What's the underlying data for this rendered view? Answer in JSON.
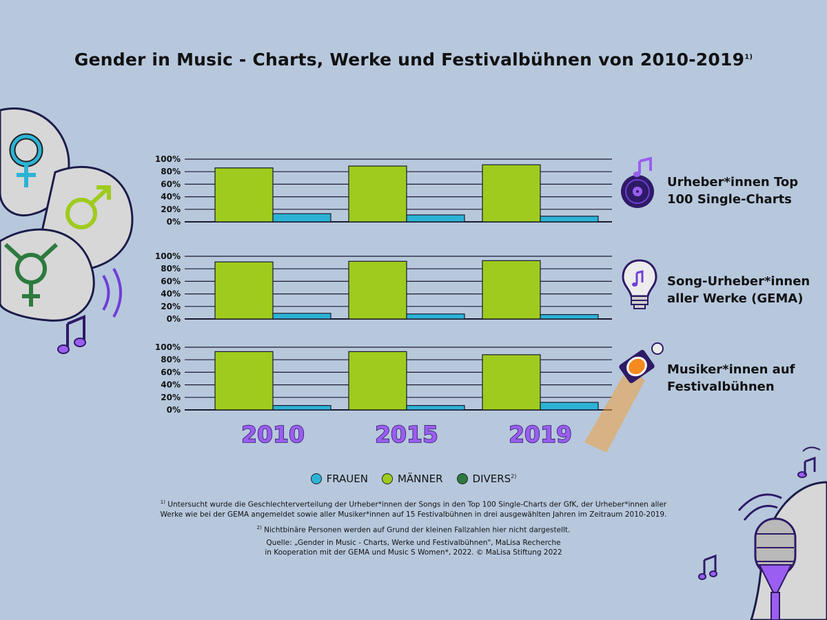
{
  "title": "Gender in Music - Charts, Werke und Festivalbühnen von 2010-2019",
  "title_footnote_marker": "1)",
  "colors": {
    "frauen": "#2bb3d6",
    "maenner": "#9fcb1e",
    "divers": "#2d7a3f",
    "accent": "#9a5ef0"
  },
  "icons": [
    "female-symbol-icon",
    "male-symbol-icon",
    "transgender-symbol-icon",
    "vinyl-record-icon",
    "lightbulb-icon",
    "spotlight-icon",
    "microphone-icon",
    "music-note-icon"
  ],
  "categories": [
    {
      "label_line1": "Urheber*innen Top",
      "label_line2": "100 Single-Charts"
    },
    {
      "label_line1": "Song-Urheber*innen",
      "label_line2": "aller Werke (GEMA)"
    },
    {
      "label_line1": "Musiker*innen auf",
      "label_line2": "Festivalbühnen"
    }
  ],
  "chart_data": [
    {
      "type": "bar",
      "categories": [
        "2010",
        "2015",
        "2019"
      ],
      "series": [
        {
          "name": "MÄNNER",
          "values": [
            86,
            89,
            91
          ]
        },
        {
          "name": "FRAUEN",
          "values": [
            13,
            11,
            9
          ]
        }
      ],
      "yticks": [
        "100%",
        "80%",
        "60%",
        "40%",
        "20%",
        "0%"
      ],
      "ylim": [
        0,
        100
      ]
    },
    {
      "type": "bar",
      "categories": [
        "2010",
        "2015",
        "2019"
      ],
      "series": [
        {
          "name": "MÄNNER",
          "values": [
            91,
            92,
            93
          ]
        },
        {
          "name": "FRAUEN",
          "values": [
            9,
            8,
            7
          ]
        }
      ],
      "yticks": [
        "100%",
        "80%",
        "60%",
        "40%",
        "20%",
        "0%"
      ],
      "ylim": [
        0,
        100
      ]
    },
    {
      "type": "bar",
      "categories": [
        "2010",
        "2015",
        "2019"
      ],
      "series": [
        {
          "name": "MÄNNER",
          "values": [
            93,
            93,
            88
          ]
        },
        {
          "name": "FRAUEN",
          "values": [
            7,
            7,
            12
          ]
        }
      ],
      "yticks": [
        "100%",
        "80%",
        "60%",
        "40%",
        "20%",
        "0%"
      ],
      "ylim": [
        0,
        100
      ]
    }
  ],
  "legend": [
    {
      "label": "FRAUEN",
      "color": "#2bb3d6",
      "sup": ""
    },
    {
      "label": "MÄNNER",
      "color": "#9fcb1e",
      "sup": ""
    },
    {
      "label": "DIVERS",
      "color": "#2d7a3f",
      "sup": "2)"
    }
  ],
  "footnotes": {
    "f1_marker": "1)",
    "f1_line1": "Untersucht wurde die Geschlechterverteilung der Urheber*innen der Songs in den Top 100 Single-Charts der GfK, der Urheber*innen aller",
    "f1_line2": "Werke wie bei der GEMA angemeldet sowie aller Musiker*innen auf 15 Festivalbühnen in drei ausgewählten Jahren im Zeitraum 2010-2019.",
    "f2_marker": "2)",
    "f2": "Nichtbinäre Personen werden auf Grund der kleinen Fallzahlen hier nicht dargestellt.",
    "source_line1": "Quelle: „Gender in Music - Charts, Werke und Festivalbühnen\", MaLisa Recherche",
    "source_line2": "in Kooperation mit der GEMA und Music S Women*, 2022. © MaLisa Stiftung 2022"
  }
}
